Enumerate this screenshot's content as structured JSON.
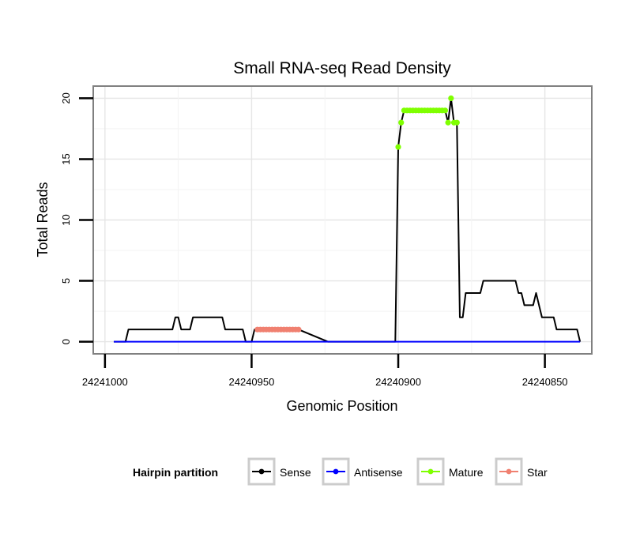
{
  "chart_data": {
    "type": "line",
    "title": "Small RNA-seq Read Density",
    "xlabel": "Genomic Position",
    "ylabel": "Total Reads",
    "xlim": [
      24241004,
      24240834
    ],
    "ylim": [
      -1,
      21
    ],
    "x_reversed": true,
    "x_ticks": [
      24241000,
      24240950,
      24240900,
      24240850
    ],
    "x_tick_labels": [
      "24241000",
      "24240950",
      "24240900",
      "24240850"
    ],
    "y_ticks": [
      0,
      5,
      10,
      15,
      20
    ],
    "y_tick_labels": [
      "0",
      "5",
      "10",
      "15",
      "20"
    ],
    "grid": true,
    "legend_position": "bottom",
    "legend": {
      "title": "Hairpin partition",
      "entries": [
        {
          "label": "Sense",
          "color": "#000000"
        },
        {
          "label": "Antisense",
          "color": "#0000ff"
        },
        {
          "label": "Mature",
          "color": "#7fff00"
        },
        {
          "label": "Star",
          "color": "#f08070"
        }
      ]
    },
    "series": [
      {
        "name": "Sense",
        "color": "#000000",
        "style": "line",
        "x": [
          24240997,
          24240993,
          24240992,
          24240977,
          24240976,
          24240975,
          24240974,
          24240971,
          24240970,
          24240969,
          24240960,
          24240959,
          24240953,
          24240952,
          24240951,
          24240950,
          24240949,
          24240948,
          24240947,
          24240934,
          24240924,
          24240923,
          24240922,
          24240921,
          24240920,
          24240919,
          24240901,
          24240900,
          24240899,
          24240898,
          24240897,
          24240896,
          24240895,
          24240894,
          24240893,
          24240892,
          24240891,
          24240890,
          24240889,
          24240888,
          24240887,
          24240886,
          24240885,
          24240884,
          24240883,
          24240882,
          24240881,
          24240880,
          24240879,
          24240878,
          24240877,
          24240876,
          24240875,
          24240874,
          24240873,
          24240872,
          24240871,
          24240870,
          24240869,
          24240868,
          24240867,
          24240866,
          24240865,
          24240864,
          24240863,
          24240862,
          24240861,
          24240860,
          24240859,
          24240858,
          24240857,
          24240856,
          24240855,
          24240854,
          24240853,
          24240852,
          24240851,
          24240850,
          24240849,
          24240848,
          24240847,
          24240846,
          24240845,
          24240844,
          24240843,
          24240842,
          24240841,
          24240840,
          24240839,
          24240838
        ],
        "values": [
          0,
          0,
          1,
          1,
          2,
          2,
          1,
          1,
          2,
          2,
          2,
          1,
          1,
          0,
          0,
          0,
          1,
          1,
          1,
          1,
          0,
          0,
          0,
          0,
          0,
          0,
          0,
          16,
          18,
          19,
          19,
          19,
          19,
          19,
          19,
          19,
          19,
          19,
          19,
          19,
          19,
          19,
          19,
          19,
          18,
          20,
          18,
          18,
          2,
          2,
          4,
          4,
          4,
          4,
          4,
          4,
          5,
          5,
          5,
          5,
          5,
          5,
          5,
          5,
          5,
          5,
          5,
          5,
          4,
          4,
          3,
          3,
          3,
          3,
          4,
          3,
          2,
          2,
          2,
          2,
          2,
          1,
          1,
          1,
          1,
          1,
          1,
          1,
          1,
          0
        ]
      },
      {
        "name": "Antisense",
        "color": "#0000ff",
        "style": "line",
        "x": [
          24240997,
          24240838
        ],
        "values": [
          0,
          0
        ]
      },
      {
        "name": "Mature",
        "color": "#7fff00",
        "style": "points",
        "x": [
          24240900,
          24240899,
          24240898,
          24240897,
          24240896,
          24240895,
          24240894,
          24240893,
          24240892,
          24240891,
          24240890,
          24240889,
          24240888,
          24240887,
          24240886,
          24240885,
          24240884,
          24240883,
          24240882,
          24240881,
          24240880
        ],
        "values": [
          16,
          18,
          19,
          19,
          19,
          19,
          19,
          19,
          19,
          19,
          19,
          19,
          19,
          19,
          19,
          19,
          19,
          18,
          20,
          18,
          18
        ]
      },
      {
        "name": "Star",
        "color": "#f08070",
        "style": "points",
        "x": [
          24240948,
          24240947,
          24240946,
          24240945,
          24240944,
          24240943,
          24240942,
          24240941,
          24240940,
          24240939,
          24240938,
          24240937,
          24240936,
          24240935,
          24240934
        ],
        "values": [
          1,
          1,
          1,
          1,
          1,
          1,
          1,
          1,
          1,
          1,
          1,
          1,
          1,
          1,
          1
        ]
      }
    ]
  }
}
